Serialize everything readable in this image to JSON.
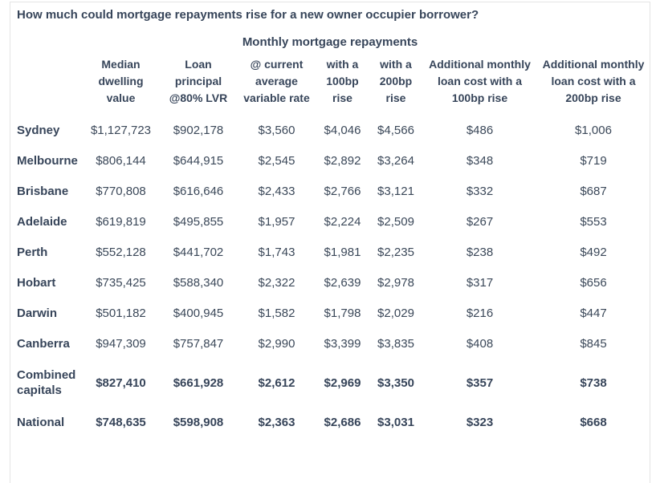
{
  "page": {
    "title": "How much could mortgage repayments rise for a new owner occupier borrower?"
  },
  "colors": {
    "text": "#3b4859",
    "heading_text": "#37455a",
    "border": "#e4e4e4",
    "background": "#ffffff"
  },
  "chart_data": {
    "type": "table",
    "title": "How much could mortgage repayments rise for a new owner occupier borrower?",
    "group_header": "Monthly mortgage repayments",
    "columns": [
      "",
      "Median dwelling value",
      "Loan principal @80% LVR",
      "@ current average variable rate",
      "with a 100bp rise",
      "with a 200bp rise",
      "Additional monthly loan cost with a 100bp rise",
      "Additional monthly loan cost with a 200bp rise"
    ],
    "rows": [
      {
        "label": "Sydney",
        "values": [
          "$1,127,723",
          "$902,178",
          "$3,560",
          "$4,046",
          "$4,566",
          "$486",
          "$1,006"
        ]
      },
      {
        "label": "Melbourne",
        "values": [
          "$806,144",
          "$644,915",
          "$2,545",
          "$2,892",
          "$3,264",
          "$348",
          "$719"
        ]
      },
      {
        "label": "Brisbane",
        "values": [
          "$770,808",
          "$616,646",
          "$2,433",
          "$2,766",
          "$3,121",
          "$332",
          "$687"
        ]
      },
      {
        "label": "Adelaide",
        "values": [
          "$619,819",
          "$495,855",
          "$1,957",
          "$2,224",
          "$2,509",
          "$267",
          "$553"
        ]
      },
      {
        "label": "Perth",
        "values": [
          "$552,128",
          "$441,702",
          "$1,743",
          "$1,981",
          "$2,235",
          "$238",
          "$492"
        ]
      },
      {
        "label": "Hobart",
        "values": [
          "$735,425",
          "$588,340",
          "$2,322",
          "$2,639",
          "$2,978",
          "$317",
          "$656"
        ]
      },
      {
        "label": "Darwin",
        "values": [
          "$501,182",
          "$400,945",
          "$1,582",
          "$1,798",
          "$2,029",
          "$216",
          "$447"
        ]
      },
      {
        "label": "Canberra",
        "values": [
          "$947,309",
          "$757,847",
          "$2,990",
          "$3,399",
          "$3,835",
          "$408",
          "$845"
        ]
      },
      {
        "label": "Combined capitals",
        "values": [
          "$827,410",
          "$661,928",
          "$2,612",
          "$2,969",
          "$3,350",
          "$357",
          "$738"
        ]
      },
      {
        "label": "National",
        "values": [
          "$748,635",
          "$598,908",
          "$2,363",
          "$2,686",
          "$3,031",
          "$323",
          "$668"
        ]
      }
    ]
  }
}
